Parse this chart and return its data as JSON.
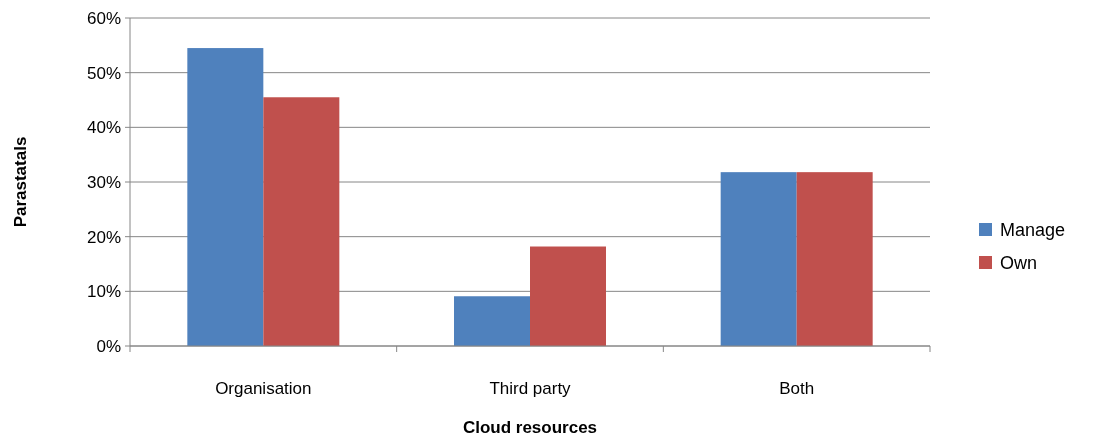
{
  "chart_data": {
    "type": "bar",
    "xlabel": "Cloud resources",
    "ylabel": "Parastatals",
    "categories": [
      "Organisation",
      "Third party",
      "Both"
    ],
    "series": [
      {
        "name": "Manage",
        "color": "#4f81bd",
        "values": [
          54.5,
          9.1,
          31.8
        ]
      },
      {
        "name": "Own",
        "color": "#c0504d",
        "values": [
          45.5,
          18.2,
          31.8
        ]
      }
    ],
    "ylim": [
      0,
      60
    ],
    "yticks": [
      {
        "value": 0,
        "label": "0%"
      },
      {
        "value": 10,
        "label": "10%"
      },
      {
        "value": 20,
        "label": "20%"
      },
      {
        "value": 30,
        "label": "30%"
      },
      {
        "value": 40,
        "label": "40%"
      },
      {
        "value": 50,
        "label": "50%"
      },
      {
        "value": 60,
        "label": "60%"
      }
    ],
    "grid": "y",
    "legend": "right"
  }
}
